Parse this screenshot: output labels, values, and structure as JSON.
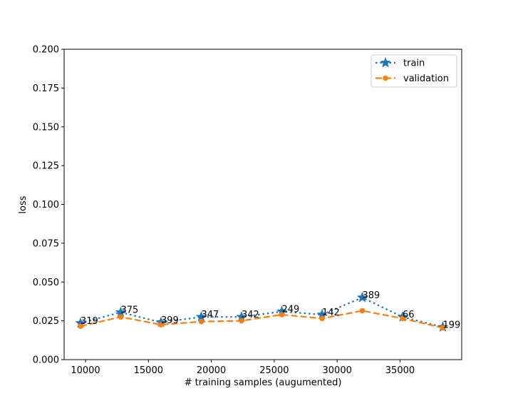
{
  "chart_data": {
    "type": "line",
    "xlabel": "# training samples (augumented)",
    "ylabel": "loss",
    "xlim": [
      8300,
      39900
    ],
    "ylim": [
      0,
      0.2
    ],
    "xticks": [
      10000,
      15000,
      20000,
      25000,
      30000,
      35000
    ],
    "yticks": [
      0.0,
      0.025,
      0.05,
      0.075,
      0.1,
      0.125,
      0.15,
      0.175,
      0.2
    ],
    "grid": false,
    "legend_position": "top-right",
    "x": [
      9600,
      12800,
      16000,
      19200,
      22400,
      25600,
      28800,
      32000,
      35200,
      38400
    ],
    "point_labels": [
      "319",
      "375",
      "399",
      "347",
      "342",
      "249",
      "142",
      "389",
      "66",
      "199"
    ],
    "series": [
      {
        "name": "train",
        "color": "#1f77b4",
        "line_style": "dotted",
        "marker": "star",
        "values": [
          0.0235,
          0.0305,
          0.024,
          0.0275,
          0.0275,
          0.031,
          0.029,
          0.04,
          0.0275,
          0.021
        ]
      },
      {
        "name": "validation",
        "color": "#ff7f0e",
        "line_style": "dashed",
        "marker": "circle",
        "values": [
          0.0215,
          0.0275,
          0.0225,
          0.0245,
          0.025,
          0.029,
          0.0265,
          0.0315,
          0.0265,
          0.0205
        ]
      }
    ]
  }
}
